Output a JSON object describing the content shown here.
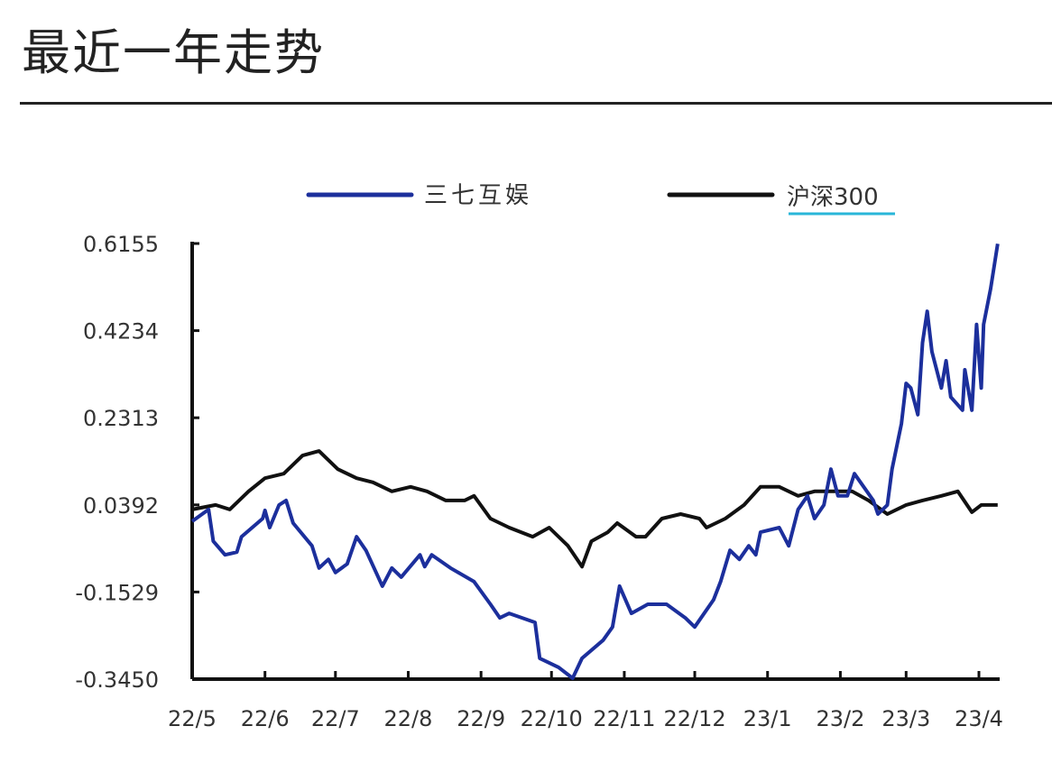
{
  "title": "最近一年走势",
  "chart_data": {
    "type": "line",
    "title": "",
    "xlabel": "",
    "ylabel": "",
    "legend_placement": "top",
    "grid": false,
    "ylim": [
      -0.345,
      0.6155
    ],
    "yticks": [
      "0.6155",
      "0.4234",
      "0.2313",
      "0.0392",
      "-0.1529",
      "-0.3450"
    ],
    "xticks": [
      {
        "date": "2022-05-01",
        "label": "22/5"
      },
      {
        "date": "2022-06-01",
        "label": "22/6"
      },
      {
        "date": "2022-07-01",
        "label": "22/7"
      },
      {
        "date": "2022-08-01",
        "label": "22/8"
      },
      {
        "date": "2022-09-01",
        "label": "22/9"
      },
      {
        "date": "2022-10-01",
        "label": "22/10"
      },
      {
        "date": "2022-11-01",
        "label": "22/11"
      },
      {
        "date": "2022-12-01",
        "label": "22/12"
      },
      {
        "date": "2023-01-01",
        "label": "23/1"
      },
      {
        "date": "2023-02-01",
        "label": "23/2"
      },
      {
        "date": "2023-03-01",
        "label": "23/3"
      },
      {
        "date": "2023-04-01",
        "label": "23/4"
      }
    ],
    "xlim": [
      "2022-05-01",
      "2023-04-09"
    ],
    "series": [
      {
        "name": "三七互娱",
        "color": "#1c2f9c",
        "x": [
          "2022-05-01",
          "2022-05-08",
          "2022-05-10",
          "2022-05-15",
          "2022-05-20",
          "2022-05-22",
          "2022-05-31",
          "2022-06-01",
          "2022-06-03",
          "2022-06-07",
          "2022-06-10",
          "2022-06-13",
          "2022-06-21",
          "2022-06-24",
          "2022-06-28",
          "2022-07-01",
          "2022-07-06",
          "2022-07-10",
          "2022-07-14",
          "2022-07-21",
          "2022-07-25",
          "2022-07-29",
          "2022-08-06",
          "2022-08-08",
          "2022-08-11",
          "2022-08-19",
          "2022-08-29",
          "2022-09-05",
          "2022-09-09",
          "2022-09-13",
          "2022-09-24",
          "2022-09-26",
          "2022-10-04",
          "2022-10-10",
          "2022-10-14",
          "2022-10-23",
          "2022-10-27",
          "2022-10-30",
          "2022-11-04",
          "2022-11-11",
          "2022-11-19",
          "2022-11-27",
          "2022-12-01",
          "2022-12-09",
          "2022-12-12",
          "2022-12-16",
          "2022-12-20",
          "2022-12-24",
          "2022-12-27",
          "2022-12-29",
          "2023-01-06",
          "2023-01-10",
          "2023-01-14",
          "2023-01-18",
          "2023-01-21",
          "2023-01-25",
          "2023-01-28",
          "2023-01-31",
          "2023-02-04",
          "2023-02-07",
          "2023-02-15",
          "2023-02-17",
          "2023-02-21",
          "2023-02-23",
          "2023-02-27",
          "2023-03-01",
          "2023-03-03",
          "2023-03-06",
          "2023-03-08",
          "2023-03-10",
          "2023-03-12",
          "2023-03-16",
          "2023-03-18",
          "2023-03-20",
          "2023-03-25",
          "2023-03-26",
          "2023-03-29",
          "2023-03-31",
          "2023-04-02",
          "2023-04-03",
          "2023-04-06",
          "2023-04-09"
        ],
        "values": [
          0.003,
          0.029,
          -0.041,
          -0.071,
          -0.065,
          -0.031,
          0.009,
          0.027,
          -0.011,
          0.039,
          0.049,
          -0.001,
          -0.051,
          -0.1,
          -0.081,
          -0.11,
          -0.091,
          -0.031,
          -0.061,
          -0.14,
          -0.1,
          -0.12,
          -0.071,
          -0.097,
          -0.071,
          -0.1,
          -0.13,
          -0.18,
          -0.21,
          -0.2,
          -0.22,
          -0.299,
          -0.319,
          -0.343,
          -0.299,
          -0.259,
          -0.23,
          -0.14,
          -0.2,
          -0.18,
          -0.18,
          -0.21,
          -0.23,
          -0.17,
          -0.13,
          -0.061,
          -0.081,
          -0.051,
          -0.071,
          -0.021,
          -0.011,
          -0.051,
          0.029,
          0.059,
          0.009,
          0.039,
          0.118,
          0.059,
          0.059,
          0.108,
          0.049,
          0.019,
          0.039,
          0.118,
          0.218,
          0.307,
          0.297,
          0.238,
          0.397,
          0.466,
          0.377,
          0.297,
          0.357,
          0.277,
          0.248,
          0.337,
          0.248,
          0.437,
          0.297,
          0.437,
          0.516,
          0.615
        ]
      },
      {
        "name": "沪深300",
        "color": "#111111",
        "x": [
          "2022-05-01",
          "2022-05-11",
          "2022-05-17",
          "2022-05-25",
          "2022-06-01",
          "2022-06-09",
          "2022-06-17",
          "2022-06-24",
          "2022-07-02",
          "2022-07-10",
          "2022-07-17",
          "2022-07-25",
          "2022-08-02",
          "2022-08-09",
          "2022-08-17",
          "2022-08-25",
          "2022-08-29",
          "2022-09-05",
          "2022-09-13",
          "2022-09-23",
          "2022-09-30",
          "2022-10-08",
          "2022-10-14",
          "2022-10-18",
          "2022-10-25",
          "2022-10-29",
          "2022-11-06",
          "2022-11-10",
          "2022-11-17",
          "2022-11-25",
          "2022-12-03",
          "2022-12-06",
          "2022-12-14",
          "2022-12-22",
          "2022-12-29",
          "2023-01-06",
          "2023-01-14",
          "2023-01-21",
          "2023-01-29",
          "2023-02-06",
          "2023-02-13",
          "2023-02-21",
          "2023-03-01",
          "2023-03-08",
          "2023-03-16",
          "2023-03-23",
          "2023-03-29",
          "2023-04-02",
          "2023-04-09"
        ],
        "values": [
          0.029,
          0.039,
          0.029,
          0.069,
          0.098,
          0.108,
          0.148,
          0.158,
          0.118,
          0.098,
          0.089,
          0.069,
          0.079,
          0.069,
          0.049,
          0.049,
          0.059,
          0.009,
          -0.011,
          -0.031,
          -0.011,
          -0.051,
          -0.097,
          -0.041,
          -0.021,
          -0.001,
          -0.031,
          -0.031,
          0.009,
          0.019,
          0.009,
          -0.011,
          0.009,
          0.039,
          0.079,
          0.079,
          0.059,
          0.069,
          0.069,
          0.069,
          0.049,
          0.019,
          0.039,
          0.049,
          0.059,
          0.069,
          0.023,
          0.039,
          0.039
        ]
      }
    ],
    "legend_underline_color": "#29b6d8"
  }
}
